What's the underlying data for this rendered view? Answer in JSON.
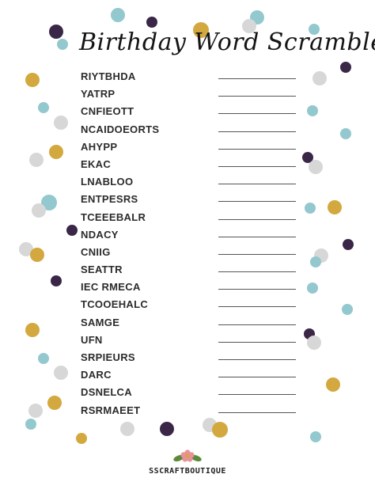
{
  "title": "Birthday Word Scramble",
  "words": [
    "RIYTBHDA",
    "YATRP",
    "CNFIEOTT",
    "NCAIDOEORTS",
    "AHYPP",
    "EKAC",
    "LNABLOO",
    "ENTPESRS",
    "TCEEEBALR",
    "NDACY",
    "CNIIG",
    "SEATTR",
    "IEC RMECA",
    "TCOOEHALC",
    "SAMGE",
    "UFN",
    "SRPIEURS",
    "DARC",
    "DSNELCA",
    "RSRMAEET"
  ],
  "footer": {
    "brand": "SSCRAFTBOUTIQUE",
    "logo_icon": "flower-logo-icon"
  },
  "colors": {
    "gold": "#d3a83f",
    "teal": "#93c8cf",
    "purple": "#3a2748",
    "gray": "#d7d7d7"
  }
}
